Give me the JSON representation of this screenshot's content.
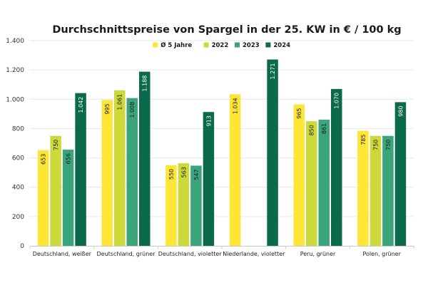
{
  "chart_data": {
    "type": "bar",
    "title": "Durchschnittspreise von Spargel in der 25. KW in € / 100 kg",
    "xlabel": "",
    "ylabel": "",
    "ylim": [
      0,
      1400
    ],
    "yticks": [
      0,
      200,
      400,
      600,
      800,
      1000,
      1200,
      1400
    ],
    "ytick_labels": [
      "0",
      "200",
      "400",
      "600",
      "800",
      "1.000",
      "1.200",
      "1.400"
    ],
    "grid": true,
    "legend_position": "top-center",
    "categories": [
      "Deutschland, weißer",
      "Deutschland, grüner",
      "Deutschland, violetter",
      "Niederlande, violetter",
      "Peru, grüner",
      "Polen, grüner"
    ],
    "series": [
      {
        "name": "Ø 5 Jahre",
        "color": "#FFE536",
        "label_color": "#1a1a1a",
        "values": [
          653,
          995,
          550,
          1034,
          965,
          785
        ],
        "labels": [
          "653",
          "995",
          "550",
          "1.034",
          "965",
          "785"
        ]
      },
      {
        "name": "2022",
        "color": "#CDD83A",
        "label_color": "#1a1a1a",
        "values": [
          750,
          1061,
          563,
          null,
          850,
          750
        ],
        "labels": [
          "750",
          "1.061",
          "563",
          "",
          "850",
          "750"
        ]
      },
      {
        "name": "2023",
        "color": "#3AA57A",
        "label_color": "#1a1a1a",
        "values": [
          656,
          1008,
          547,
          null,
          861,
          750
        ],
        "labels": [
          "656",
          "1.008",
          "547",
          "",
          "861",
          "750"
        ]
      },
      {
        "name": "2024",
        "color": "#0B6A4B",
        "label_color": "#ffffff",
        "values": [
          1042,
          1188,
          913,
          1271,
          1070,
          980
        ],
        "labels": [
          "1.042",
          "1.188",
          "913",
          "1.271",
          "1.070",
          "980"
        ]
      }
    ]
  }
}
